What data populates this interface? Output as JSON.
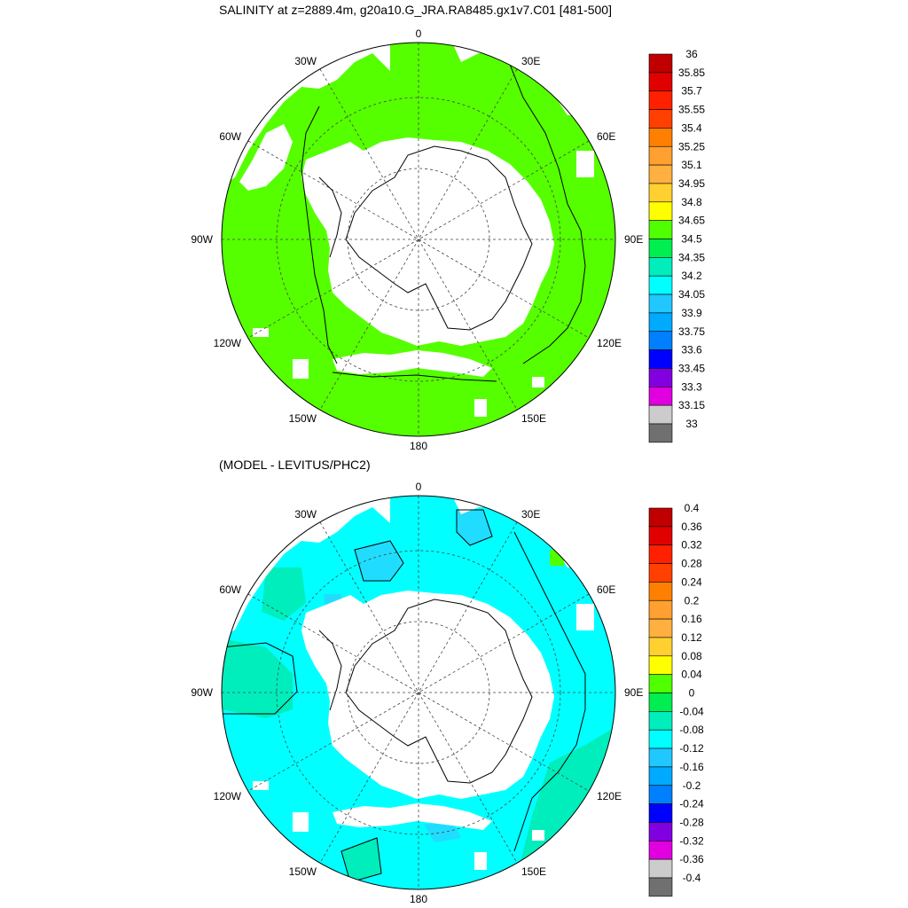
{
  "top_panel": {
    "title": "SALINITY at z=2889.4m, g20a10.G_JRA.RA8485.gx1v7.C01 [481-500]",
    "colorbar": {
      "labels": [
        "36",
        "35.85",
        "35.7",
        "35.55",
        "35.4",
        "35.25",
        "35.1",
        "34.95",
        "34.8",
        "34.65",
        "34.5",
        "34.35",
        "34.2",
        "34.05",
        "33.9",
        "33.75",
        "33.6",
        "33.45",
        "33.3",
        "33.15",
        "33"
      ],
      "colors": [
        "#c00000",
        "#e00000",
        "#ff2000",
        "#ff4000",
        "#ff8000",
        "#ffa030",
        "#ffb040",
        "#ffd030",
        "#ffff00",
        "#50ff00",
        "#00ee50",
        "#00eebb",
        "#00ffff",
        "#20c8ff",
        "#00aaff",
        "#0080ff",
        "#0000ff",
        "#8000e0",
        "#e000e0",
        "#cccccc",
        "#707070"
      ]
    }
  },
  "bottom_panel": {
    "title": "(MODEL - LEVITUS/PHC2)",
    "colorbar": {
      "labels": [
        "0.4",
        "0.36",
        "0.32",
        "0.28",
        "0.24",
        "0.2",
        "0.16",
        "0.12",
        "0.08",
        "0.04",
        "0",
        "-0.04",
        "-0.08",
        "-0.12",
        "-0.16",
        "-0.2",
        "-0.24",
        "-0.28",
        "-0.32",
        "-0.36",
        "-0.4"
      ],
      "colors": [
        "#c00000",
        "#e00000",
        "#ff2000",
        "#ff4000",
        "#ff8000",
        "#ffa030",
        "#ffb040",
        "#ffd030",
        "#ffff00",
        "#50ff00",
        "#00ee50",
        "#00eebb",
        "#00ffff",
        "#20c8ff",
        "#00aaff",
        "#0080ff",
        "#0000ff",
        "#8000e0",
        "#e000e0",
        "#cccccc",
        "#707070"
      ]
    }
  },
  "longitude_labels": {
    "top": "0",
    "bottom": "180",
    "left": "90W",
    "right": "90E",
    "upper_left": [
      "30W",
      "60W"
    ],
    "upper_right": [
      "30E",
      "60E"
    ],
    "lower_left": [
      "120W",
      "150W"
    ],
    "lower_right": [
      "120E",
      "150E"
    ]
  },
  "colors": {
    "land": "#ffffff",
    "top_ocean_fill": "#55ff00",
    "top_secondary_fill": "#00ee55",
    "bottom_ocean_fill": "#00ffff",
    "bottom_secondary_fill": "#00eebb",
    "bottom_negative_patch": "#20ddff",
    "coast": "#000000"
  }
}
